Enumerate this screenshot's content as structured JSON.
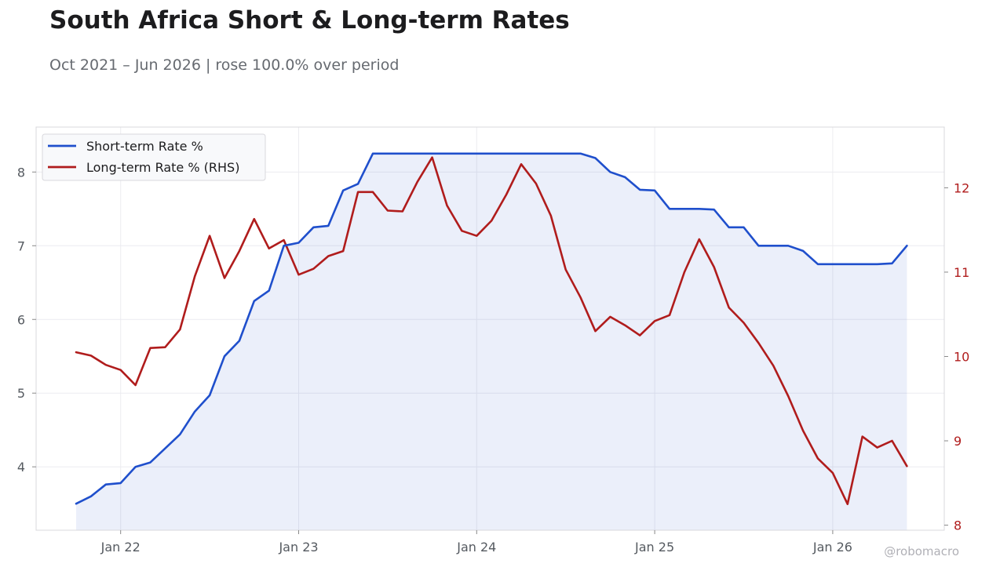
{
  "chart_data": {
    "type": "line",
    "title": "South Africa Short & Long-term Rates",
    "subtitle": "Oct 2021 – Jun 2026 | rose 100.0% over period",
    "watermark": "@robomacro",
    "x_tick_labels": [
      "Jan 22",
      "Jan 23",
      "Jan 24",
      "Jan 25",
      "Jan 26"
    ],
    "x": [
      "2021-10",
      "2021-11",
      "2021-12",
      "2022-01",
      "2022-02",
      "2022-03",
      "2022-04",
      "2022-05",
      "2022-06",
      "2022-07",
      "2022-08",
      "2022-09",
      "2022-10",
      "2022-11",
      "2022-12",
      "2023-01",
      "2023-02",
      "2023-03",
      "2023-04",
      "2023-05",
      "2023-06",
      "2023-07",
      "2023-08",
      "2023-09",
      "2023-10",
      "2023-11",
      "2023-12",
      "2024-01",
      "2024-02",
      "2024-03",
      "2024-04",
      "2024-05",
      "2024-06",
      "2024-07",
      "2024-08",
      "2024-09",
      "2024-10",
      "2024-11",
      "2024-12",
      "2025-01",
      "2025-02",
      "2025-03",
      "2025-04",
      "2025-05",
      "2025-06",
      "2025-07",
      "2025-08",
      "2025-09",
      "2025-10",
      "2025-11",
      "2025-12",
      "2026-01",
      "2026-02",
      "2026-03",
      "2026-04",
      "2026-05",
      "2026-06"
    ],
    "series": [
      {
        "name": "Short-term Rate %",
        "axis": "left",
        "color": "#1f4fcc",
        "values": [
          3.5,
          3.6,
          3.76,
          3.78,
          4.0,
          4.06,
          4.25,
          4.44,
          4.75,
          4.97,
          5.5,
          5.71,
          6.25,
          6.39,
          7.0,
          7.04,
          7.25,
          7.27,
          7.75,
          7.84,
          8.25,
          8.25,
          8.25,
          8.25,
          8.25,
          8.25,
          8.25,
          8.25,
          8.25,
          8.25,
          8.25,
          8.25,
          8.25,
          8.25,
          8.25,
          8.19,
          8.0,
          7.93,
          7.76,
          7.75,
          7.5,
          7.5,
          7.5,
          7.49,
          7.25,
          7.25,
          7.0,
          7.0,
          7.0,
          6.93,
          6.75,
          6.75,
          6.75,
          6.75,
          6.75,
          6.76,
          7.0
        ]
      },
      {
        "name": "Long-term Rate % (RHS)",
        "axis": "right",
        "color": "#b01c1c",
        "values": [
          10.05,
          10.01,
          9.9,
          9.84,
          9.66,
          10.1,
          10.11,
          10.32,
          10.95,
          11.43,
          10.93,
          11.25,
          11.63,
          11.28,
          11.38,
          10.97,
          11.04,
          11.19,
          11.25,
          11.95,
          11.95,
          11.73,
          11.72,
          12.07,
          12.36,
          11.79,
          11.49,
          11.43,
          11.61,
          11.92,
          12.28,
          12.05,
          11.67,
          11.03,
          10.7,
          10.3,
          10.47,
          10.37,
          10.25,
          10.42,
          10.49,
          11.0,
          11.39,
          11.06,
          10.58,
          10.4,
          10.16,
          9.89,
          9.53,
          9.12,
          8.79,
          8.62,
          8.25,
          9.05,
          8.92,
          9.0,
          8.7
        ]
      }
    ],
    "left_axis": {
      "ylim": [
        3.14,
        8.61
      ],
      "ticks": [
        4,
        5,
        6,
        7,
        8
      ]
    },
    "right_axis": {
      "ylim": [
        7.94,
        12.72
      ],
      "ticks": [
        8,
        9,
        10,
        11,
        12
      ]
    },
    "fill_under": "Short-term Rate %",
    "grid": true,
    "legend_position": "top-left"
  }
}
